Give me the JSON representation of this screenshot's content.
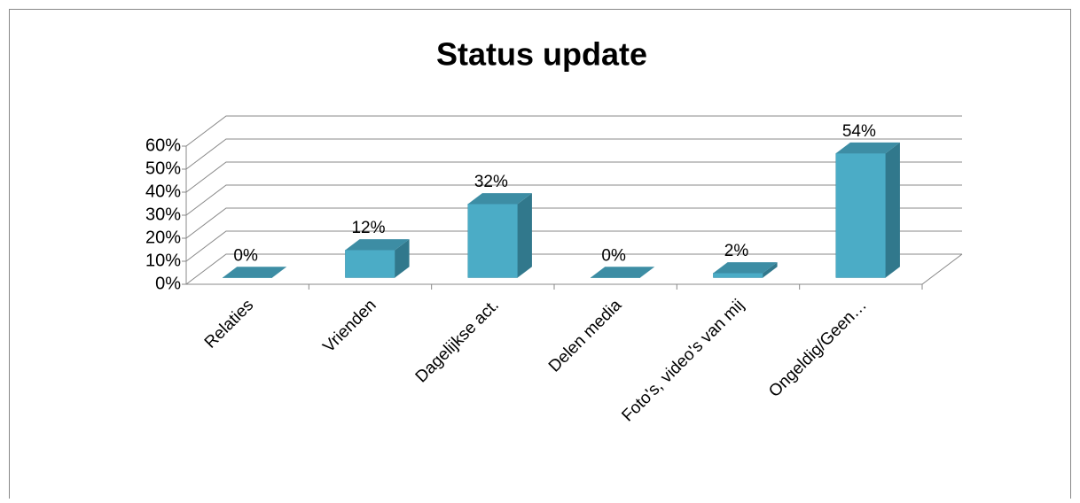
{
  "chart_data": {
    "type": "bar3d",
    "title": "Status update",
    "categories": [
      "Relaties",
      "Vrienden",
      "Dagelijkse act.",
      "Delen media",
      "Foto's, video's van mij",
      "Ongeldig/Geen…"
    ],
    "values": [
      0,
      12,
      32,
      0,
      2,
      54
    ],
    "value_labels": [
      "0%",
      "12%",
      "32%",
      "0%",
      "2%",
      "54%"
    ],
    "color": "#4bacc6",
    "ylim": [
      0,
      60
    ],
    "yticks": [
      {
        "value": 0,
        "label": "0%"
      },
      {
        "value": 10,
        "label": "10%"
      },
      {
        "value": 20,
        "label": "20%"
      },
      {
        "value": 30,
        "label": "30%"
      },
      {
        "value": 40,
        "label": "40%"
      },
      {
        "value": 50,
        "label": "50%"
      },
      {
        "value": 60,
        "label": "60%"
      }
    ],
    "grid": true
  }
}
